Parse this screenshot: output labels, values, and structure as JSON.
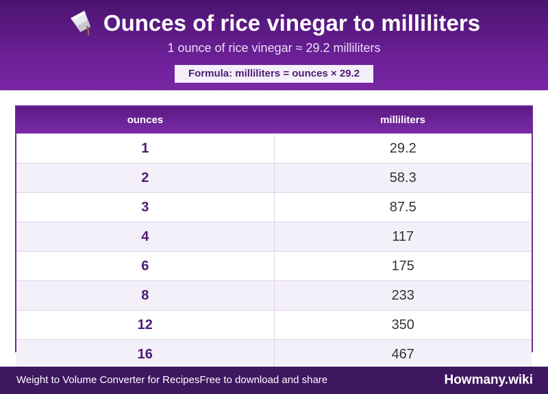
{
  "header": {
    "title": "Ounces of rice vinegar to milliliters",
    "subtitle": "1 ounce of rice vinegar ≈ 29.2 milliliters",
    "formula": "Formula: milliliters = ounces × 29.2",
    "icon": "pouring-cup-icon"
  },
  "table": {
    "columns": [
      "ounces",
      "milliliters"
    ],
    "rows": [
      {
        "ounces": "1",
        "milliliters": "29.2"
      },
      {
        "ounces": "2",
        "milliliters": "58.3"
      },
      {
        "ounces": "3",
        "milliliters": "87.5"
      },
      {
        "ounces": "4",
        "milliliters": "117"
      },
      {
        "ounces": "6",
        "milliliters": "175"
      },
      {
        "ounces": "8",
        "milliliters": "233"
      },
      {
        "ounces": "12",
        "milliliters": "350"
      },
      {
        "ounces": "16",
        "milliliters": "467"
      }
    ]
  },
  "footer": {
    "left_text": "Weight to Volume Converter for Recipes",
    "left_text_2": "Free to download and share",
    "brand": "Howmany.wiki"
  },
  "colors": {
    "header_bg": "#6a1f95",
    "accent": "#4e1a75",
    "footer_bg": "#3f1660",
    "row_alt": "#f4f0fa"
  }
}
